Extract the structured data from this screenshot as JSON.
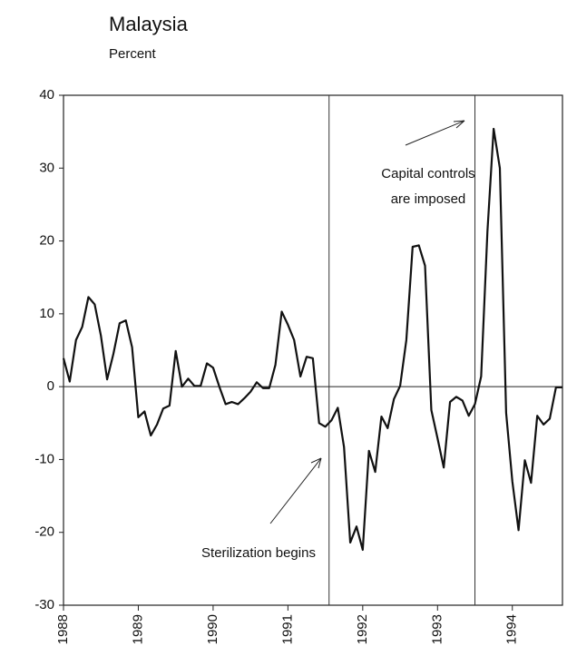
{
  "chart_data": {
    "type": "line",
    "title": "Malaysia",
    "subtitle": "Percent",
    "x": [
      1988,
      1988.083,
      1988.167,
      1988.25,
      1988.333,
      1988.417,
      1988.5,
      1988.583,
      1988.667,
      1988.75,
      1988.833,
      1988.917,
      1989,
      1989.083,
      1989.167,
      1989.25,
      1989.333,
      1989.417,
      1989.5,
      1989.583,
      1989.667,
      1989.75,
      1989.833,
      1989.917,
      1990,
      1990.083,
      1990.167,
      1990.25,
      1990.333,
      1990.417,
      1990.5,
      1990.583,
      1990.667,
      1990.75,
      1990.833,
      1990.917,
      1991,
      1991.083,
      1991.167,
      1991.25,
      1991.333,
      1991.417,
      1991.5,
      1991.583,
      1991.667,
      1991.75,
      1991.833,
      1991.917,
      1992,
      1992.083,
      1992.167,
      1992.25,
      1992.333,
      1992.417,
      1992.5,
      1992.583,
      1992.667,
      1992.75,
      1992.833,
      1992.917,
      1993,
      1993.083,
      1993.167,
      1993.25,
      1993.333,
      1993.417,
      1993.5,
      1993.583,
      1993.667,
      1993.75,
      1993.833,
      1993.917,
      1994,
      1994.083,
      1994.167,
      1994.25,
      1994.333,
      1994.417,
      1994.5,
      1994.583,
      1994.667
    ],
    "values": [
      3.9,
      0.7,
      6.4,
      8.2,
      12.3,
      11.3,
      7,
      1,
      4.5,
      8.7,
      9.1,
      5.4,
      -4.2,
      -3.4,
      -6.7,
      -5.2,
      -3,
      -2.6,
      4.9,
      0,
      1.1,
      0.1,
      0.1,
      3.2,
      2.6,
      0,
      -2.4,
      -2.1,
      -2.4,
      -1.6,
      -0.7,
      0.6,
      -0.2,
      -0.2,
      3,
      10.3,
      8.5,
      6.4,
      1.4,
      4.1,
      3.9,
      -5,
      -5.5,
      -4.6,
      -2.9,
      -8.3,
      -21.4,
      -19.2,
      -22.4,
      -8.8,
      -11.7,
      -4.1,
      -5.7,
      -1.7,
      0.1,
      6.4,
      19.2,
      19.4,
      16.6,
      -3.2,
      -7.1,
      -11.1,
      -2.1,
      -1.4,
      -1.9,
      -4,
      -2.4,
      1.4,
      21.3,
      35.4,
      30,
      -3.6,
      -13,
      -19.7,
      -10.1,
      -13.2,
      -4,
      -5.2,
      -4.4,
      -0.1,
      -0.1
    ],
    "color": "#111111",
    "xlim": [
      1988,
      1994.67
    ],
    "xticks": [
      1988,
      1989,
      1990,
      1991,
      1992,
      1993,
      1994
    ],
    "ylim": [
      -30,
      40
    ],
    "yticks": [
      -30,
      -20,
      -10,
      0,
      10,
      20,
      30,
      40
    ],
    "vlines": [
      1991.55,
      1993.5
    ],
    "annotations": [
      "Capital controls",
      "are imposed",
      "Sterilization begins"
    ]
  }
}
